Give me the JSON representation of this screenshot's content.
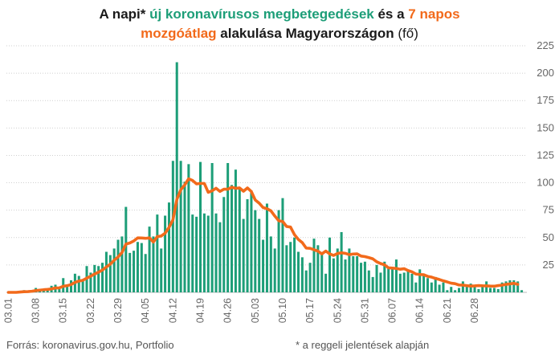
{
  "title": {
    "part1": "A napi* ",
    "part2": "új koronavírusos megbetegedések",
    "part3": " és a ",
    "part4": "7 napos",
    "part5": "mozgóátlag",
    "part6": " alakulása Magyarországon ",
    "part7": "(fő)"
  },
  "source": "Forrás: koronavirus.gov.hu, Portfolio",
  "footnote": "* a reggeli jelentések alapján",
  "colors": {
    "bars": "#1d9e78",
    "line": "#f26a1b",
    "grid": "#cfcfcf",
    "axis_text": "#666666"
  },
  "chart_data": {
    "type": "bar",
    "start_date": "2020-03-01",
    "ylim": [
      0,
      225
    ],
    "yticks": [
      25,
      50,
      75,
      100,
      125,
      150,
      175,
      200,
      225
    ],
    "y_axis_position": "right",
    "grid": "horizontal dotted",
    "xticks": [
      "03.01",
      "03.08",
      "03.15",
      "03.22",
      "03.29",
      "04.05",
      "04.12",
      "04.19",
      "04.26",
      "05.03",
      "05.10",
      "05.17",
      "05.24",
      "05.31",
      "06.07",
      "06.14",
      "06.21",
      "06.28"
    ],
    "series": [
      {
        "name": "új koronavírusos megbetegedések",
        "kind": "bar",
        "values": [
          0,
          0,
          0,
          0,
          2,
          1,
          2,
          4,
          3,
          3,
          3,
          6,
          7,
          3,
          13,
          7,
          11,
          17,
          15,
          12,
          24,
          18,
          25,
          24,
          27,
          37,
          34,
          40,
          48,
          51,
          78,
          36,
          38,
          46,
          45,
          35,
          60,
          51,
          71,
          40,
          70,
          82,
          120,
          210,
          120,
          101,
          117,
          71,
          69,
          119,
          72,
          70,
          118,
          72,
          64,
          87,
          118,
          98,
          112,
          96,
          67,
          85,
          93,
          75,
          67,
          48,
          81,
          51,
          40,
          75,
          86,
          43,
          46,
          50,
          37,
          32,
          20,
          27,
          49,
          43,
          35,
          17,
          50,
          31,
          40,
          55,
          30,
          40,
          33,
          33,
          27,
          28,
          20,
          14,
          25,
          18,
          28,
          22,
          22,
          30,
          17,
          18,
          19,
          17,
          9,
          21,
          15,
          13,
          9,
          14,
          7,
          9,
          2,
          5,
          2,
          4,
          10,
          7,
          8,
          5,
          3,
          7,
          10,
          4,
          4,
          3,
          9,
          10,
          11,
          11,
          10,
          2
        ]
      },
      {
        "name": "7 napos mozgóátlag",
        "kind": "line",
        "values": [
          0,
          0,
          0,
          0.3,
          0.6,
          0.7,
          1,
          1.6,
          2,
          2.4,
          2.7,
          3.1,
          4,
          4.1,
          5.6,
          6.1,
          7.1,
          9.1,
          10.3,
          11,
          13,
          14.7,
          16.7,
          18.4,
          20.4,
          23.1,
          25.7,
          29.3,
          32.3,
          36.4,
          44.1,
          45.1,
          46.9,
          49.7,
          49.6,
          49.3,
          49.7,
          45.9,
          50.9,
          51.4,
          54,
          59.3,
          66.3,
          84.9,
          93.6,
          98,
          103.6,
          102.1,
          99,
          99.4,
          99.4,
          91.3,
          92.7,
          95,
          92.1,
          94.1,
          94.1,
          95.9,
          94.9,
          95.3,
          92.3,
          95.3,
          92,
          84.3,
          81.4,
          77.4,
          76.3,
          74.4,
          69.6,
          65.3,
          64.7,
          60.1,
          59.6,
          52.7,
          48.3,
          45.4,
          40.4,
          40.2,
          38.9,
          37.6,
          35.1,
          37.7,
          35.1,
          33.7,
          35.5,
          36.1,
          35.6,
          34.4,
          35,
          35.1,
          33.1,
          32.6,
          31.7,
          30.6,
          27.9,
          26.3,
          25.1,
          22.4,
          22.1,
          21.8,
          21.1,
          21.6,
          19.9,
          18.7,
          16.7,
          16.3,
          16.1,
          14.6,
          13.9,
          12.7,
          11.7,
          10.5,
          9.5,
          8.4,
          7.9,
          6.7,
          6.6,
          6.1,
          5.7,
          5.9,
          6.2,
          6,
          5.9,
          5.7,
          5.6,
          6.2,
          6.6,
          7.3,
          7.7,
          8.3,
          7.3
        ]
      }
    ]
  }
}
